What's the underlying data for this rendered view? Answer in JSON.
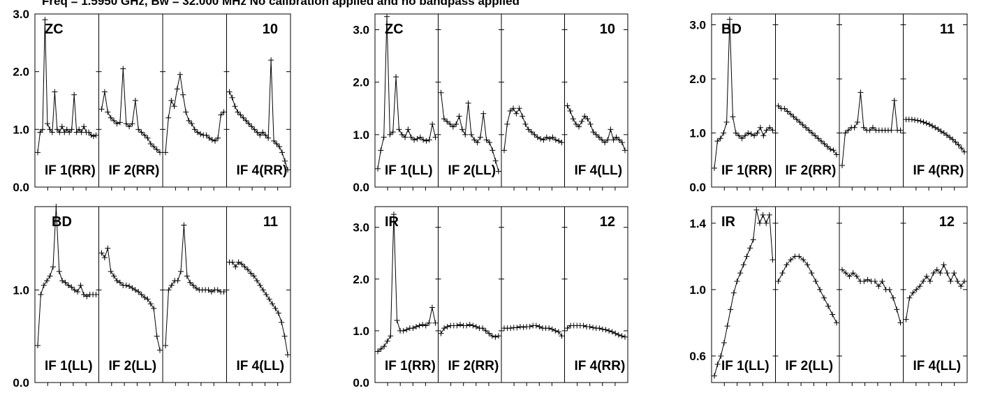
{
  "header": "Freq = 1.5950 GHz, Bw = 32.000 MHz   No calibration applied and no bandpass applied",
  "colors": {
    "ink": "#000000",
    "background": "#ffffff"
  },
  "chart_data": [
    {
      "type": "line",
      "baseline": "ZC",
      "corner": "10",
      "ylim": [
        0,
        3
      ],
      "yticks": [
        "0.0",
        "1.0",
        "2.0",
        "3.0"
      ],
      "series": [
        {
          "label": "IF 1(RR)",
          "values": [
            0.6,
            0.95,
            1.0,
            2.9,
            1.1,
            1.0,
            0.95,
            1.65,
            1.0,
            0.95,
            1.05,
            0.95,
            1.0,
            0.95,
            1.0,
            1.6,
            0.95,
            1.0,
            0.95,
            1.05,
            0.95,
            0.95,
            0.9,
            0.88,
            0.9
          ]
        },
        {
          "label": "IF 2(RR)",
          "values": [
            1.35,
            1.65,
            1.3,
            1.2,
            1.15,
            1.1,
            1.12,
            2.05,
            1.1,
            1.05,
            1.1,
            1.5,
            1.0,
            0.95,
            0.9,
            0.85,
            0.75,
            0.7,
            0.65,
            0.6
          ]
        },
        {
          "label": "",
          "values": [
            0.6,
            1.2,
            1.5,
            1.4,
            1.7,
            1.95,
            1.6,
            1.3,
            1.15,
            1.1,
            1.0,
            0.95,
            0.92,
            0.9,
            0.9,
            0.85,
            0.82,
            0.8,
            0.85,
            1.25,
            1.3
          ]
        },
        {
          "label": "IF 4(RR)",
          "values": [
            1.65,
            1.55,
            1.4,
            1.3,
            1.25,
            1.2,
            1.15,
            1.1,
            1.05,
            1.0,
            0.95,
            0.9,
            0.95,
            0.9,
            0.85,
            2.2,
            0.8,
            0.75,
            0.7,
            0.6,
            0.45,
            0.3
          ]
        }
      ]
    },
    {
      "type": "line",
      "baseline": "ZC",
      "corner": "10",
      "ylim": [
        0,
        3.3
      ],
      "yticks": [
        "0.0",
        "1.0",
        "2.0",
        "3.0"
      ],
      "series": [
        {
          "label": "IF 1(LL)",
          "values": [
            0.35,
            0.7,
            0.95,
            3.25,
            1.0,
            1.05,
            2.1,
            1.1,
            1.0,
            0.95,
            1.1,
            0.95,
            0.9,
            0.92,
            0.95,
            0.9,
            0.88,
            0.9,
            1.2,
            0.95
          ]
        },
        {
          "label": "IF 2(LL)",
          "values": [
            1.8,
            1.3,
            1.25,
            1.2,
            1.15,
            1.2,
            1.35,
            1.1,
            1.0,
            1.6,
            1.0,
            0.9,
            0.85,
            0.95,
            1.4,
            0.9,
            0.85,
            0.7,
            0.5,
            0.3
          ]
        },
        {
          "label": "",
          "values": [
            0.7,
            1.2,
            1.45,
            1.5,
            1.4,
            1.5,
            1.35,
            1.2,
            1.1,
            1.05,
            1.0,
            0.95,
            0.92,
            0.9,
            0.95,
            0.92,
            0.95,
            0.9,
            0.88,
            0.85
          ]
        },
        {
          "label": "IF 4(LL)",
          "values": [
            1.55,
            1.45,
            1.3,
            1.2,
            1.15,
            1.25,
            1.35,
            1.3,
            1.2,
            1.05,
            1.0,
            0.95,
            0.9,
            0.85,
            0.9,
            1.1,
            0.9,
            0.95,
            0.9,
            0.85,
            0.7
          ]
        }
      ]
    },
    {
      "type": "line",
      "baseline": "BD",
      "corner": "11",
      "ylim": [
        0,
        3.2
      ],
      "yticks": [
        "0.0",
        "1.0",
        "2.0",
        "3.0"
      ],
      "series": [
        {
          "label": "IF 1(RR)",
          "values": [
            0.35,
            0.85,
            0.9,
            1.0,
            1.2,
            3.1,
            1.3,
            1.0,
            0.95,
            0.9,
            0.95,
            1.0,
            0.98,
            0.95,
            1.0,
            1.1,
            0.95,
            1.05,
            1.1,
            1.05
          ]
        },
        {
          "label": "IF 2(RR)",
          "values": [
            1.5,
            1.45,
            1.45,
            1.4,
            1.35,
            1.3,
            1.25,
            1.2,
            1.15,
            1.1,
            1.05,
            1.0,
            0.95,
            0.9,
            0.85,
            0.8,
            0.75,
            0.7,
            0.68,
            0.6
          ]
        },
        {
          "label": "",
          "values": [
            0.4,
            1.0,
            1.05,
            1.1,
            1.1,
            1.2,
            1.75,
            1.1,
            1.05,
            1.05,
            1.1,
            1.05,
            1.05,
            1.05,
            1.05,
            1.05,
            1.05,
            1.6,
            1.05,
            1.05
          ]
        },
        {
          "label": "IF 4(RR)",
          "values": [
            1.25,
            1.25,
            1.25,
            1.24,
            1.23,
            1.22,
            1.2,
            1.18,
            1.16,
            1.13,
            1.1,
            1.07,
            1.03,
            1.0,
            0.96,
            0.92,
            0.88,
            0.83,
            0.78,
            0.72,
            0.65
          ]
        }
      ]
    },
    {
      "type": "line",
      "baseline": "BD",
      "corner": "11",
      "ylim": [
        0,
        1.9
      ],
      "yticks": [
        "0.0",
        "1.0"
      ],
      "series": [
        {
          "label": "IF 1(LL)",
          "values": [
            0.4,
            0.95,
            1.05,
            1.1,
            1.15,
            1.25,
            1.9,
            1.2,
            1.1,
            1.08,
            1.05,
            1.03,
            1.0,
            0.98,
            1.05,
            0.95,
            0.93,
            0.95,
            0.95,
            0.95
          ]
        },
        {
          "label": "IF 2(LL)",
          "values": [
            1.4,
            1.35,
            1.45,
            1.2,
            1.15,
            1.1,
            1.08,
            1.05,
            1.05,
            1.04,
            1.02,
            1.0,
            0.98,
            0.95,
            0.92,
            0.9,
            0.85,
            0.8,
            0.5,
            0.35
          ]
        },
        {
          "label": "",
          "values": [
            0.4,
            1.0,
            1.05,
            1.1,
            1.1,
            1.2,
            1.7,
            1.15,
            1.08,
            1.05,
            1.02,
            1.0,
            1.0,
            1.0,
            1.0,
            0.98,
            1.0,
            1.0,
            0.98,
            0.98
          ]
        },
        {
          "label": "IF 4(LL)",
          "values": [
            1.3,
            1.3,
            1.25,
            1.3,
            1.28,
            1.25,
            1.22,
            1.18,
            1.15,
            1.1,
            1.05,
            1.0,
            0.95,
            0.9,
            0.85,
            0.8,
            0.75,
            0.65,
            0.5,
            0.3
          ]
        }
      ]
    },
    {
      "type": "line",
      "baseline": "IR",
      "corner": "12",
      "ylim": [
        0,
        3.4
      ],
      "yticks": [
        "0.0",
        "1.0",
        "2.0",
        "3.0"
      ],
      "series": [
        {
          "label": "IF 1(RR)",
          "values": [
            0.6,
            0.65,
            0.7,
            0.8,
            0.9,
            3.25,
            1.2,
            1.0,
            1.0,
            1.02,
            1.05,
            1.05,
            1.08,
            1.1,
            1.12,
            1.1,
            1.15,
            1.45,
            1.15
          ]
        },
        {
          "label": "IF 2(RR)",
          "values": [
            0.95,
            1.05,
            1.08,
            1.1,
            1.1,
            1.1,
            1.12,
            1.1,
            1.1,
            1.12,
            1.1,
            1.08,
            1.05,
            1.05,
            1.0,
            0.95,
            0.9,
            0.88,
            0.9
          ]
        },
        {
          "label": "",
          "values": [
            1.05,
            1.05,
            1.05,
            1.06,
            1.06,
            1.08,
            1.07,
            1.08,
            1.08,
            1.1,
            1.1,
            1.08,
            1.05,
            1.05,
            1.05,
            1.03,
            1.0,
            0.98,
            0.9
          ]
        },
        {
          "label": "IF 4(RR)",
          "values": [
            1.05,
            1.1,
            1.1,
            1.1,
            1.1,
            1.1,
            1.08,
            1.08,
            1.06,
            1.05,
            1.05,
            1.03,
            1.02,
            1.0,
            0.98,
            0.95,
            0.92,
            0.9,
            0.88
          ]
        }
      ]
    },
    {
      "type": "line",
      "baseline": "IR",
      "corner": "12",
      "ylim": [
        0.44,
        1.5
      ],
      "yticks": [
        "0.6",
        "1.0",
        "1.4"
      ],
      "series": [
        {
          "label": "IF 1(LL)",
          "values": [
            0.48,
            0.55,
            0.6,
            0.68,
            0.78,
            0.88,
            0.98,
            1.05,
            1.1,
            1.15,
            1.2,
            1.25,
            1.3,
            1.48,
            1.4,
            1.45,
            1.4,
            1.45,
            1.18
          ]
        },
        {
          "label": "IF 2(LL)",
          "values": [
            1.05,
            1.1,
            1.15,
            1.18,
            1.2,
            1.2,
            1.18,
            1.15,
            1.1,
            1.05,
            1.0,
            0.95,
            0.9,
            0.85,
            0.8
          ]
        },
        {
          "label": "",
          "values": [
            1.12,
            1.1,
            1.08,
            1.1,
            1.08,
            1.05,
            1.05,
            1.06,
            1.05,
            1.05,
            1.02,
            1.05,
            1.0,
            1.0,
            0.95,
            0.88,
            0.8
          ]
        },
        {
          "label": "IF 4(LL)",
          "values": [
            0.82,
            0.95,
            0.98,
            1.0,
            1.02,
            1.05,
            1.08,
            1.05,
            1.1,
            1.12,
            1.1,
            1.15,
            1.1,
            1.05,
            1.1,
            1.05,
            1.02,
            1.05
          ]
        }
      ]
    }
  ]
}
